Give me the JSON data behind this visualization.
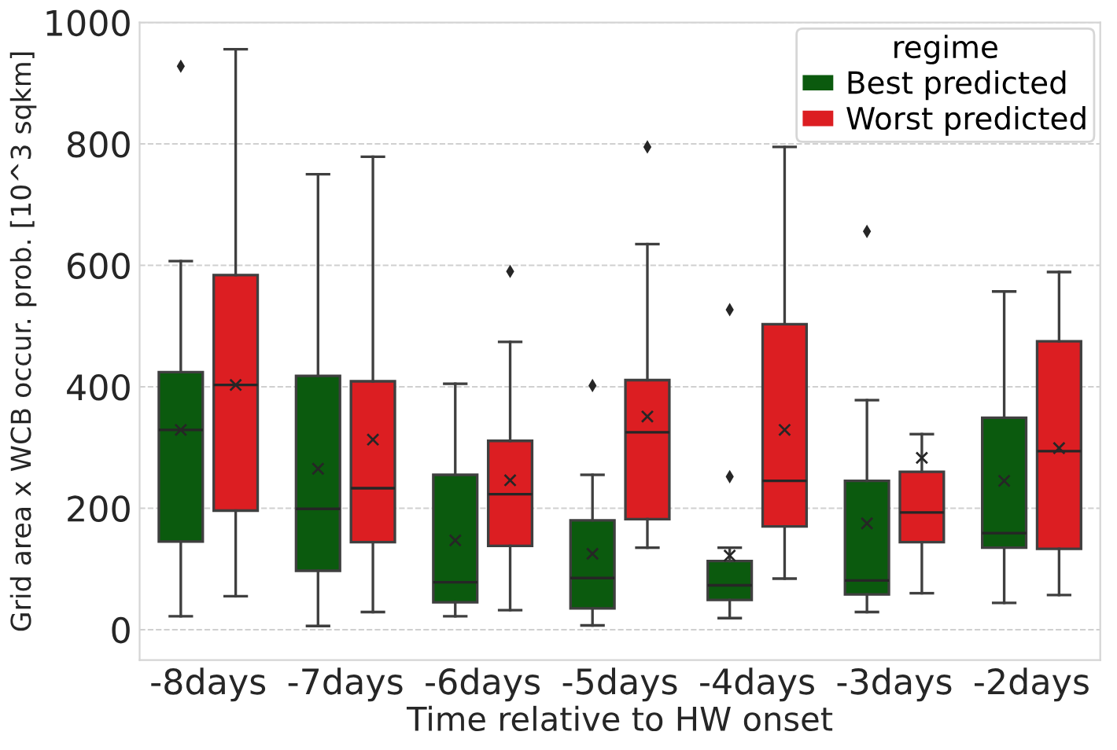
{
  "chart_data": {
    "type": "box",
    "xlabel": "Time relative to HW onset",
    "ylabel": "Grid area x WCB occur. prob. [10^3 sqkm]",
    "legend_title": "regime",
    "categories": [
      "-8days",
      "-7days",
      "-6days",
      "-5days",
      "-4days",
      "-3days",
      "-2days"
    ],
    "ylim": [
      -50,
      1000
    ],
    "yticks": [
      0,
      200,
      400,
      600,
      800,
      1000
    ],
    "grid": "y",
    "legend": "top right",
    "marker": "cross",
    "series": [
      {
        "name": "Best predicted",
        "color": "#0b5a0e",
        "boxes": [
          {
            "low": 22,
            "q1": 145,
            "median": 329,
            "q3": 424,
            "high": 607,
            "mean": 329,
            "outliers": [
              928
            ]
          },
          {
            "low": 6,
            "q1": 97,
            "median": 199,
            "q3": 418,
            "high": 750,
            "mean": 265
          },
          {
            "low": 22,
            "q1": 45,
            "median": 78,
            "q3": 255,
            "high": 405,
            "mean": 147
          },
          {
            "low": 7,
            "q1": 35,
            "median": 85,
            "q3": 180,
            "high": 255,
            "mean": 125,
            "outliers": [
              402
            ]
          },
          {
            "low": 19,
            "q1": 49,
            "median": 73,
            "q3": 113,
            "high": 135,
            "mean": 122,
            "outliers": [
              527,
              252
            ]
          },
          {
            "low": 29,
            "q1": 58,
            "median": 81,
            "q3": 245,
            "high": 378,
            "mean": 175,
            "outliers": [
              656
            ]
          },
          {
            "low": 44,
            "q1": 135,
            "median": 159,
            "q3": 349,
            "high": 557,
            "mean": 245
          }
        ]
      },
      {
        "name": "Worst predicted",
        "color": "#dc1e22",
        "boxes": [
          {
            "low": 55,
            "q1": 196,
            "median": 403,
            "q3": 584,
            "high": 956,
            "mean": 403
          },
          {
            "low": 29,
            "q1": 144,
            "median": 233,
            "q3": 409,
            "high": 779,
            "mean": 313
          },
          {
            "low": 32,
            "q1": 138,
            "median": 223,
            "q3": 311,
            "high": 474,
            "mean": 246,
            "outliers": [
              590
            ]
          },
          {
            "low": 135,
            "q1": 182,
            "median": 325,
            "q3": 411,
            "high": 635,
            "mean": 351,
            "outliers": [
              795
            ]
          },
          {
            "low": 84,
            "q1": 170,
            "median": 245,
            "q3": 503,
            "high": 795,
            "mean": 329
          },
          {
            "low": 60,
            "q1": 144,
            "median": 193,
            "q3": 260,
            "high": 322,
            "mean": 283
          },
          {
            "low": 57,
            "q1": 133,
            "median": 294,
            "q3": 475,
            "high": 589,
            "mean": 299
          }
        ]
      }
    ]
  }
}
